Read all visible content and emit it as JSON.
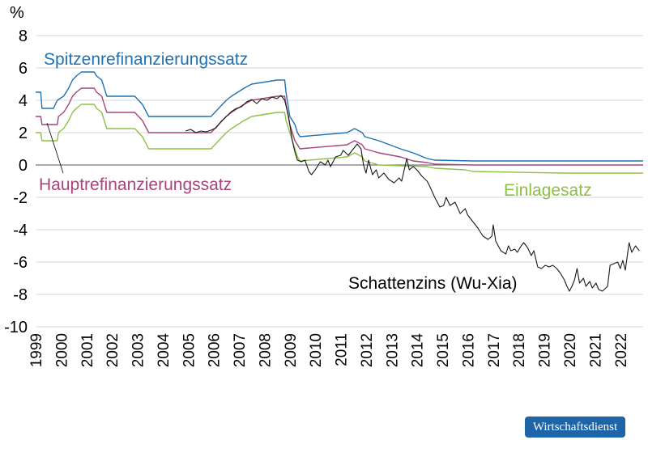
{
  "chart_data": {
    "type": "line",
    "ylabel": "%",
    "ylim": [
      -10,
      8
    ],
    "yticks": [
      "8",
      "6",
      "4",
      "2",
      "0",
      "-2",
      "-4",
      "-6",
      "-8",
      "-10"
    ],
    "xlim": [
      1999,
      2022.9
    ],
    "xticks": [
      "1999",
      "2000",
      "2001",
      "2002",
      "2003",
      "2004",
      "2005",
      "2006",
      "2007",
      "2008",
      "2009",
      "2010",
      "2011",
      "2012",
      "2013",
      "2014",
      "2015",
      "2016",
      "2017",
      "2018",
      "2019",
      "2020",
      "2021",
      "2022"
    ],
    "grid": "horizontal",
    "series": [
      {
        "name": "Spitzenrefinanzierungssatz",
        "color": "#1f72b4",
        "points": [
          [
            1999.0,
            4.5
          ],
          [
            1999.2,
            4.5
          ],
          [
            1999.25,
            3.5
          ],
          [
            1999.7,
            3.5
          ],
          [
            1999.85,
            4.0
          ],
          [
            2000.1,
            4.25
          ],
          [
            2000.2,
            4.5
          ],
          [
            2000.3,
            4.75
          ],
          [
            2000.45,
            5.25
          ],
          [
            2000.6,
            5.5
          ],
          [
            2000.8,
            5.75
          ],
          [
            2001.3,
            5.75
          ],
          [
            2001.4,
            5.5
          ],
          [
            2001.6,
            5.25
          ],
          [
            2001.7,
            4.75
          ],
          [
            2001.8,
            4.25
          ],
          [
            2002.9,
            4.25
          ],
          [
            2003.2,
            3.75
          ],
          [
            2003.45,
            3.0
          ],
          [
            2005.9,
            3.0
          ],
          [
            2006.2,
            3.5
          ],
          [
            2006.5,
            4.0
          ],
          [
            2006.7,
            4.25
          ],
          [
            2006.95,
            4.5
          ],
          [
            2007.2,
            4.75
          ],
          [
            2007.5,
            5.0
          ],
          [
            2008.5,
            5.25
          ],
          [
            2008.8,
            5.25
          ],
          [
            2008.85,
            4.5
          ],
          [
            2009.0,
            3.0
          ],
          [
            2009.2,
            2.5
          ],
          [
            2009.3,
            2.0
          ],
          [
            2009.4,
            1.75
          ],
          [
            2011.25,
            2.0
          ],
          [
            2011.55,
            2.25
          ],
          [
            2011.85,
            2.0
          ],
          [
            2011.95,
            1.75
          ],
          [
            2012.5,
            1.5
          ],
          [
            2013.35,
            1.0
          ],
          [
            2013.85,
            0.75
          ],
          [
            2014.4,
            0.4
          ],
          [
            2014.7,
            0.3
          ],
          [
            2016.2,
            0.25
          ],
          [
            2022.9,
            0.25
          ]
        ]
      },
      {
        "name": "Hauptrefinanzierungssatz",
        "color": "#a6447b",
        "points": [
          [
            1999.0,
            3.0
          ],
          [
            1999.2,
            3.0
          ],
          [
            1999.25,
            2.5
          ],
          [
            1999.85,
            2.5
          ],
          [
            1999.9,
            3.0
          ],
          [
            2000.1,
            3.25
          ],
          [
            2000.2,
            3.5
          ],
          [
            2000.3,
            3.75
          ],
          [
            2000.45,
            4.25
          ],
          [
            2000.6,
            4.5
          ],
          [
            2000.8,
            4.75
          ],
          [
            2001.3,
            4.75
          ],
          [
            2001.4,
            4.5
          ],
          [
            2001.6,
            4.25
          ],
          [
            2001.7,
            3.75
          ],
          [
            2001.8,
            3.25
          ],
          [
            2002.9,
            3.25
          ],
          [
            2003.2,
            2.75
          ],
          [
            2003.45,
            2.0
          ],
          [
            2005.9,
            2.0
          ],
          [
            2006.2,
            2.5
          ],
          [
            2006.5,
            3.0
          ],
          [
            2006.7,
            3.25
          ],
          [
            2006.95,
            3.5
          ],
          [
            2007.2,
            3.75
          ],
          [
            2007.5,
            4.0
          ],
          [
            2008.5,
            4.25
          ],
          [
            2008.8,
            4.25
          ],
          [
            2008.85,
            3.75
          ],
          [
            2009.0,
            2.5
          ],
          [
            2009.2,
            1.5
          ],
          [
            2009.3,
            1.25
          ],
          [
            2009.4,
            1.0
          ],
          [
            2011.25,
            1.25
          ],
          [
            2011.55,
            1.5
          ],
          [
            2011.85,
            1.25
          ],
          [
            2011.95,
            1.0
          ],
          [
            2012.5,
            0.75
          ],
          [
            2013.35,
            0.5
          ],
          [
            2013.85,
            0.25
          ],
          [
            2014.4,
            0.15
          ],
          [
            2014.7,
            0.05
          ],
          [
            2016.2,
            0.0
          ],
          [
            2022.9,
            0.0
          ]
        ]
      },
      {
        "name": "Einlagesatz",
        "color": "#8ec045",
        "points": [
          [
            1999.0,
            2.0
          ],
          [
            1999.2,
            2.0
          ],
          [
            1999.25,
            1.5
          ],
          [
            1999.85,
            1.5
          ],
          [
            1999.9,
            2.0
          ],
          [
            2000.1,
            2.25
          ],
          [
            2000.2,
            2.5
          ],
          [
            2000.3,
            2.75
          ],
          [
            2000.45,
            3.25
          ],
          [
            2000.6,
            3.5
          ],
          [
            2000.8,
            3.75
          ],
          [
            2001.3,
            3.75
          ],
          [
            2001.4,
            3.5
          ],
          [
            2001.6,
            3.25
          ],
          [
            2001.7,
            2.75
          ],
          [
            2001.8,
            2.25
          ],
          [
            2002.9,
            2.25
          ],
          [
            2003.2,
            1.75
          ],
          [
            2003.45,
            1.0
          ],
          [
            2005.9,
            1.0
          ],
          [
            2006.2,
            1.5
          ],
          [
            2006.5,
            2.0
          ],
          [
            2006.7,
            2.25
          ],
          [
            2006.95,
            2.5
          ],
          [
            2007.2,
            2.75
          ],
          [
            2007.5,
            3.0
          ],
          [
            2008.5,
            3.25
          ],
          [
            2008.8,
            3.25
          ],
          [
            2008.85,
            2.75
          ],
          [
            2009.0,
            2.0
          ],
          [
            2009.2,
            1.0
          ],
          [
            2009.3,
            0.5
          ],
          [
            2009.4,
            0.25
          ],
          [
            2011.25,
            0.5
          ],
          [
            2011.55,
            0.75
          ],
          [
            2011.85,
            0.5
          ],
          [
            2011.95,
            0.25
          ],
          [
            2012.5,
            0.0
          ],
          [
            2014.4,
            -0.1
          ],
          [
            2014.7,
            -0.2
          ],
          [
            2015.9,
            -0.3
          ],
          [
            2016.2,
            -0.4
          ],
          [
            2019.7,
            -0.5
          ],
          [
            2022.9,
            -0.5
          ]
        ]
      },
      {
        "name": "Schattenzins (Wu-Xia)",
        "color": "#1a1a1a",
        "points": [
          [
            2004.9,
            2.1
          ],
          [
            2005.1,
            2.2
          ],
          [
            2005.3,
            2.0
          ],
          [
            2005.5,
            2.1
          ],
          [
            2005.7,
            2.05
          ],
          [
            2005.9,
            2.15
          ],
          [
            2006.1,
            2.3
          ],
          [
            2006.3,
            2.7
          ],
          [
            2006.5,
            3.0
          ],
          [
            2006.7,
            3.3
          ],
          [
            2006.9,
            3.5
          ],
          [
            2007.1,
            3.6
          ],
          [
            2007.3,
            3.9
          ],
          [
            2007.5,
            4.05
          ],
          [
            2007.7,
            3.8
          ],
          [
            2007.9,
            4.1
          ],
          [
            2008.1,
            4.0
          ],
          [
            2008.3,
            4.2
          ],
          [
            2008.5,
            4.1
          ],
          [
            2008.65,
            4.3
          ],
          [
            2008.8,
            4.0
          ],
          [
            2008.95,
            3.0
          ],
          [
            2009.1,
            1.5
          ],
          [
            2009.2,
            0.8
          ],
          [
            2009.3,
            0.3
          ],
          [
            2009.45,
            0.2
          ],
          [
            2009.6,
            0.3
          ],
          [
            2009.75,
            -0.4
          ],
          [
            2009.85,
            -0.6
          ],
          [
            2010.0,
            -0.3
          ],
          [
            2010.2,
            0.2
          ],
          [
            2010.4,
            0.0
          ],
          [
            2010.5,
            0.3
          ],
          [
            2010.6,
            -0.1
          ],
          [
            2010.8,
            0.5
          ],
          [
            2011.0,
            0.6
          ],
          [
            2011.1,
            0.9
          ],
          [
            2011.3,
            0.6
          ],
          [
            2011.5,
            1.0
          ],
          [
            2011.65,
            1.3
          ],
          [
            2011.8,
            1.0
          ],
          [
            2011.9,
            0.0
          ],
          [
            2012.0,
            -0.5
          ],
          [
            2012.1,
            0.3
          ],
          [
            2012.25,
            -0.6
          ],
          [
            2012.4,
            -0.3
          ],
          [
            2012.5,
            -0.8
          ],
          [
            2012.7,
            -0.5
          ],
          [
            2012.9,
            -0.9
          ],
          [
            2013.1,
            -1.1
          ],
          [
            2013.3,
            -0.8
          ],
          [
            2013.4,
            -1.0
          ],
          [
            2013.6,
            0.4
          ],
          [
            2013.7,
            -0.3
          ],
          [
            2013.85,
            -0.1
          ],
          [
            2014.0,
            -0.3
          ],
          [
            2014.2,
            -0.7
          ],
          [
            2014.4,
            -1.0
          ],
          [
            2014.5,
            -1.3
          ],
          [
            2014.7,
            -2.0
          ],
          [
            2014.9,
            -2.6
          ],
          [
            2015.05,
            -2.5
          ],
          [
            2015.15,
            -2.0
          ],
          [
            2015.3,
            -2.5
          ],
          [
            2015.5,
            -2.3
          ],
          [
            2015.7,
            -3.0
          ],
          [
            2015.9,
            -2.7
          ],
          [
            2016.0,
            -3.1
          ],
          [
            2016.2,
            -3.5
          ],
          [
            2016.4,
            -3.9
          ],
          [
            2016.6,
            -4.4
          ],
          [
            2016.8,
            -4.6
          ],
          [
            2016.95,
            -4.4
          ],
          [
            2017.0,
            -3.7
          ],
          [
            2017.1,
            -4.7
          ],
          [
            2017.3,
            -5.3
          ],
          [
            2017.5,
            -5.5
          ],
          [
            2017.6,
            -5.0
          ],
          [
            2017.7,
            -5.3
          ],
          [
            2017.85,
            -5.2
          ],
          [
            2017.95,
            -5.4
          ],
          [
            2018.1,
            -5.0
          ],
          [
            2018.2,
            -4.8
          ],
          [
            2018.35,
            -5.1
          ],
          [
            2018.5,
            -5.6
          ],
          [
            2018.6,
            -5.3
          ],
          [
            2018.75,
            -6.3
          ],
          [
            2018.9,
            -6.4
          ],
          [
            2019.05,
            -6.2
          ],
          [
            2019.2,
            -6.3
          ],
          [
            2019.35,
            -6.2
          ],
          [
            2019.5,
            -6.4
          ],
          [
            2019.65,
            -6.7
          ],
          [
            2019.8,
            -7.1
          ],
          [
            2019.9,
            -7.5
          ],
          [
            2020.0,
            -7.8
          ],
          [
            2020.1,
            -7.5
          ],
          [
            2020.2,
            -7.1
          ],
          [
            2020.3,
            -6.4
          ],
          [
            2020.4,
            -7.3
          ],
          [
            2020.55,
            -7.0
          ],
          [
            2020.65,
            -7.5
          ],
          [
            2020.8,
            -7.2
          ],
          [
            2020.9,
            -7.6
          ],
          [
            2021.05,
            -7.3
          ],
          [
            2021.15,
            -7.7
          ],
          [
            2021.3,
            -7.8
          ],
          [
            2021.5,
            -7.5
          ],
          [
            2021.6,
            -6.2
          ],
          [
            2021.75,
            -6.1
          ],
          [
            2021.9,
            -6.0
          ],
          [
            2022.0,
            -6.4
          ],
          [
            2022.1,
            -5.9
          ],
          [
            2022.2,
            -6.5
          ],
          [
            2022.35,
            -4.8
          ],
          [
            2022.45,
            -5.4
          ],
          [
            2022.6,
            -5.0
          ],
          [
            2022.75,
            -5.3
          ]
        ]
      }
    ],
    "labels": [
      {
        "text": "Spitzenrefinanzierungssatz",
        "series": 0
      },
      {
        "text": "Hauptrefinanzierungssatz",
        "series": 1
      },
      {
        "text": "Einlagesatz",
        "series": 2
      },
      {
        "text": "Schattenzins (Wu-Xia)",
        "series": 3
      }
    ]
  },
  "footer": {
    "source_badge": "Wirtschaftsdienst"
  }
}
